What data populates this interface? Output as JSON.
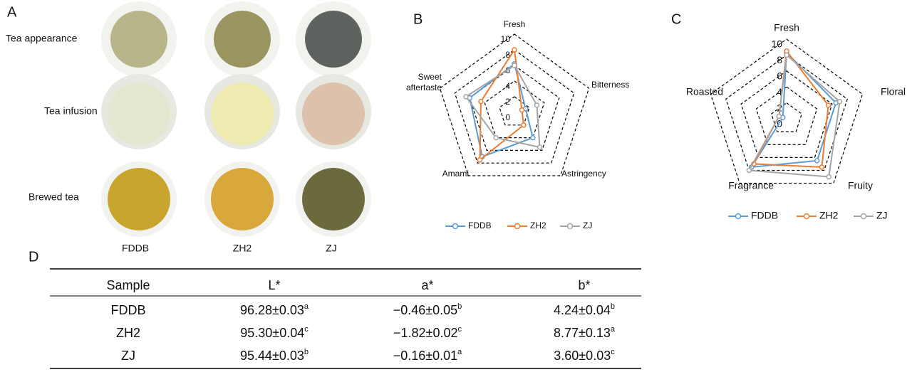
{
  "panels": {
    "a": "A",
    "b": "B",
    "c": "C",
    "d": "D"
  },
  "photos": {
    "rows": [
      "Tea appearance",
      "Tea infusion",
      "Brewed tea"
    ],
    "columns": [
      "FDDB",
      "ZH2",
      "ZJ"
    ]
  },
  "chart_data": [
    {
      "type": "radar",
      "categories": [
        "Fresh",
        "Bitterness",
        "Astringency",
        "Amami",
        "Sweet aftertaste"
      ],
      "ylim": [
        0,
        10
      ],
      "yticks": [
        0,
        2,
        4,
        6,
        8,
        10
      ],
      "series": [
        {
          "name": "FDDB",
          "color": "#5b9bd5",
          "values": [
            6.2,
            1.5,
            4,
            7,
            6
          ]
        },
        {
          "name": "ZH2",
          "color": "#ed7d31",
          "values": [
            8,
            1,
            2,
            7.5,
            4.5
          ]
        },
        {
          "name": "ZJ",
          "color": "#a5a5a5",
          "values": [
            6,
            3,
            5.5,
            4,
            6.5
          ]
        }
      ]
    },
    {
      "type": "radar",
      "categories": [
        "Fresh",
        "Floral",
        "Fruity",
        "Fragrance",
        "Roasted"
      ],
      "ylim": [
        0,
        10
      ],
      "yticks": [
        0,
        2,
        4,
        6,
        8,
        10
      ],
      "series": [
        {
          "name": "FDDB",
          "color": "#5b9bd5",
          "values": [
            8.3,
            6.5,
            6.5,
            7.5,
            0.5
          ]
        },
        {
          "name": "ZH2",
          "color": "#ed7d31",
          "values": [
            8.5,
            5.5,
            7.5,
            7,
            1
          ]
        },
        {
          "name": "ZJ",
          "color": "#a5a5a5",
          "values": [
            8,
            7,
            9,
            8,
            1
          ]
        }
      ]
    }
  ],
  "table": {
    "header": [
      "Sample",
      "L*",
      "a*",
      "b*"
    ],
    "rows": [
      [
        "FDDB",
        {
          "text": "96.28±0.03",
          "sup": "a"
        },
        {
          "text": "−0.46±0.05",
          "sup": "b"
        },
        {
          "text": "4.24±0.04",
          "sup": "b"
        }
      ],
      [
        "ZH2",
        {
          "text": "95.30±0.04",
          "sup": "c"
        },
        {
          "text": "−1.82±0.02",
          "sup": "c"
        },
        {
          "text": "8.77±0.13",
          "sup": "a"
        }
      ],
      [
        "ZJ",
        {
          "text": "95.44±0.03",
          "sup": "b"
        },
        {
          "text": "−0.16±0.01",
          "sup": "a"
        },
        {
          "text": "3.60±0.03",
          "sup": "c"
        }
      ]
    ]
  }
}
